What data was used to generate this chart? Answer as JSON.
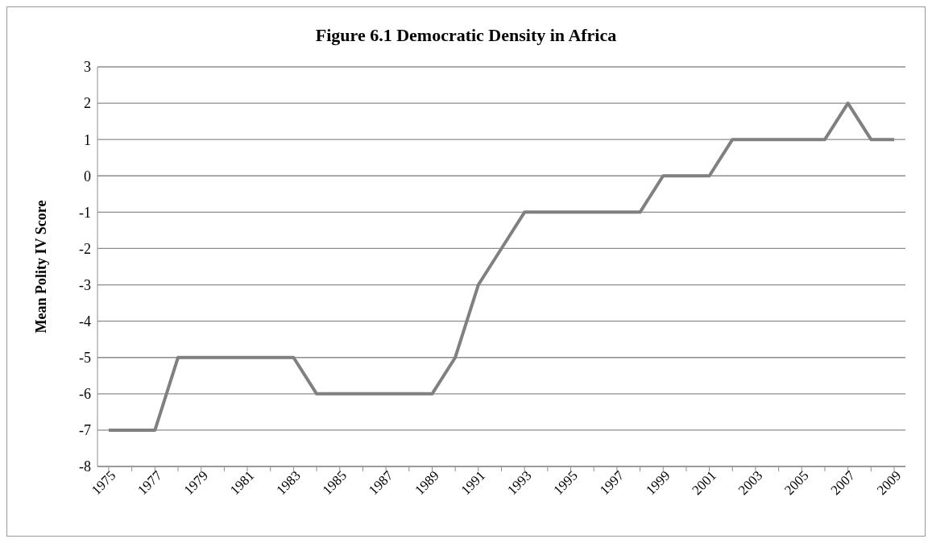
{
  "chart_data": {
    "type": "line",
    "title": "Figure 6.1 Democratic Density in Africa",
    "ylabel": "Mean Polity IV Score",
    "categories": [
      "1975",
      null,
      "1977",
      null,
      "1979",
      null,
      "1981",
      null,
      "1983",
      null,
      "1985",
      null,
      "1987",
      null,
      "1989",
      null,
      "1991",
      null,
      "1993",
      null,
      "1995",
      null,
      "1997",
      null,
      "1999",
      null,
      "2001",
      null,
      "2003",
      null,
      "2005",
      null,
      "2007",
      null,
      "2009"
    ],
    "series": [
      {
        "color": "#808080",
        "values": [
          -7,
          -7,
          -7,
          -5,
          -5,
          -5,
          -5,
          -5,
          -5,
          -6,
          -6,
          -6,
          -6,
          -6,
          -6,
          -5,
          -3,
          -2,
          -1,
          -1,
          -1,
          -1,
          -1,
          -1,
          0,
          0,
          0,
          1,
          1,
          1,
          1,
          1,
          2,
          1,
          1
        ]
      }
    ],
    "ylim": [
      -8,
      3
    ],
    "yticks": [
      -8,
      -7,
      -6,
      -5,
      -4,
      -3,
      -2,
      -1,
      0,
      1,
      2,
      3
    ],
    "grid": "y",
    "legend": false,
    "marker": "none",
    "line_style": "solid"
  }
}
